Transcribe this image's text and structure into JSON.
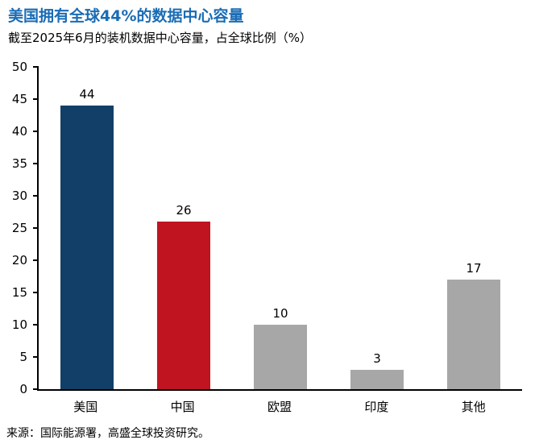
{
  "chart_data": {
    "type": "bar",
    "title": "美国拥有全球44%的数据中心容量",
    "subtitle": "截至2025年6月的装机数据中心容量，占全球比例（%）",
    "categories": [
      "美国",
      "中国",
      "欧盟",
      "印度",
      "其他"
    ],
    "values": [
      44,
      26,
      10,
      3,
      17
    ],
    "bar_colors": [
      "#123f67",
      "#c01421",
      "#a7a7a7",
      "#a7a7a7",
      "#a7a7a7"
    ],
    "ylim": [
      0,
      50
    ],
    "ytick_step": 5,
    "grid": false,
    "legend": "none",
    "xlabel": "",
    "ylabel": "",
    "source": "来源：国际能源署，高盛全球投资研究。"
  },
  "colors": {
    "title_blue": "#1a6cb5",
    "axis_black": "#000000",
    "background": "#ffffff"
  }
}
